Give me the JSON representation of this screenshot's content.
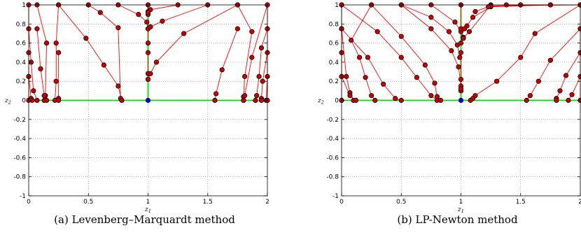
{
  "chart_data": [
    {
      "type": "line",
      "caption": "(a) Levenberg–Marquardt method",
      "xlabel": "z1",
      "ylabel": "z2",
      "xlim": [
        0,
        2
      ],
      "ylim": [
        -1,
        1
      ],
      "x_ticks": [
        "0",
        "0.5",
        "1",
        "1.5",
        "2"
      ],
      "y_ticks": [
        "1",
        "0.8",
        "0.6",
        "0.4",
        "0.2",
        "0",
        "-0.2",
        "-0.4",
        "-0.6",
        "-0.8",
        "-1"
      ],
      "grid": true,
      "colors": {
        "trajectory": "#ff0000",
        "marker": "#cc0000",
        "solution_set": "#00dd00",
        "limit_point": "#0000ff"
      },
      "solution_set": [
        [
          [
            0,
            0
          ],
          [
            2,
            0
          ]
        ],
        [
          [
            1,
            0
          ],
          [
            1,
            1
          ]
        ]
      ],
      "limit_point": [
        1,
        0
      ],
      "trajectories": [
        [
          [
            0,
            1
          ],
          [
            0,
            0.75
          ],
          [
            0.02,
            0.4
          ],
          [
            0.04,
            0.1
          ],
          [
            0.07,
            0
          ]
        ],
        [
          [
            0,
            0.5
          ],
          [
            0,
            0.25
          ],
          [
            0.02,
            0.02
          ],
          [
            0.03,
            0
          ]
        ],
        [
          [
            0,
            0.25
          ],
          [
            0,
            0
          ]
        ],
        [
          [
            0.07,
            1
          ],
          [
            0.15,
            0.6
          ],
          [
            0.14,
            0.05
          ],
          [
            0.13,
            0
          ]
        ],
        [
          [
            0.07,
            0.75
          ],
          [
            0.1,
            0.33
          ],
          [
            0.13,
            0.05
          ],
          [
            0.15,
            0
          ]
        ],
        [
          [
            0.25,
            1
          ],
          [
            0.23,
            0.6
          ],
          [
            0.23,
            0.2
          ],
          [
            0.22,
            0
          ]
        ],
        [
          [
            0.25,
            0.5
          ],
          [
            0.25,
            0.02
          ],
          [
            0.25,
            0
          ]
        ],
        [
          [
            0.25,
            1
          ],
          [
            0.48,
            0.65
          ],
          [
            0.63,
            0.37
          ],
          [
            0.75,
            0.15
          ],
          [
            0.78,
            0
          ]
        ],
        [
          [
            0.5,
            1
          ],
          [
            0.6,
            0.92
          ],
          [
            0.75,
            0.76
          ],
          [
            0.77,
            0.02
          ],
          [
            0.78,
            0
          ]
        ],
        [
          [
            0.75,
            1
          ],
          [
            0.92,
            0.9
          ],
          [
            0.99,
            0.82
          ],
          [
            1,
            0.75
          ]
        ],
        [
          [
            1,
            1
          ],
          [
            1,
            0.93
          ],
          [
            1,
            0.9
          ]
        ],
        [
          [
            1,
            0.75
          ],
          [
            1,
            0.6
          ]
        ],
        [
          [
            1,
            0.5
          ],
          [
            1,
            0.28
          ],
          [
            1,
            0.22
          ]
        ],
        [
          [
            1.25,
            1
          ],
          [
            1.02,
            0.95
          ],
          [
            1,
            0.92
          ]
        ],
        [
          [
            1.5,
            1
          ],
          [
            1.12,
            0.83
          ],
          [
            1.02,
            0.77
          ]
        ],
        [
          [
            1.75,
            1
          ],
          [
            1.3,
            0.7
          ],
          [
            1.07,
            0.4
          ],
          [
            1.02,
            0.28
          ],
          [
            1,
            0.22
          ]
        ],
        [
          [
            1.75,
            0.75
          ],
          [
            1.62,
            0.32
          ],
          [
            1.57,
            0.07
          ],
          [
            1.56,
            0
          ]
        ],
        [
          [
            1.75,
            1
          ],
          [
            1.87,
            0.72
          ],
          [
            1.81,
            0.25
          ],
          [
            1.8,
            0.04
          ],
          [
            1.8,
            0
          ]
        ],
        [
          [
            2,
            1
          ],
          [
            1.87,
            0.45
          ],
          [
            1.81,
            0.05
          ],
          [
            1.8,
            0
          ]
        ],
        [
          [
            2,
            0.75
          ],
          [
            1.95,
            0.55
          ],
          [
            1.93,
            0.25
          ],
          [
            1.91,
            0.05
          ],
          [
            1.9,
            0
          ]
        ],
        [
          [
            2,
            0.5
          ],
          [
            1.96,
            0.2
          ],
          [
            1.95,
            0.02
          ],
          [
            1.95,
            0
          ]
        ],
        [
          [
            2,
            0.25
          ],
          [
            1.99,
            0
          ]
        ],
        [
          [
            2,
            1
          ],
          [
            2,
            0
          ]
        ]
      ]
    },
    {
      "type": "line",
      "caption": "(b) LP-Newton method",
      "xlabel": "z1",
      "ylabel": "z2",
      "xlim": [
        0,
        2
      ],
      "ylim": [
        -1,
        1
      ],
      "x_ticks": [
        "0",
        "0.5",
        "1",
        "1.5",
        "2"
      ],
      "y_ticks": [
        "1",
        "0.8",
        "0.6",
        "0.4",
        "0.2",
        "0",
        "-0.2",
        "-0.4",
        "-0.6",
        "-0.8",
        "-1"
      ],
      "grid": true,
      "colors": {
        "trajectory": "#ff0000",
        "marker": "#cc0000",
        "solution_set": "#00dd00",
        "limit_point": "#0000ff"
      },
      "solution_set": [
        [
          [
            0,
            0
          ],
          [
            2,
            0
          ]
        ],
        [
          [
            1,
            0
          ],
          [
            1,
            1
          ]
        ]
      ],
      "limit_point": [
        1,
        0
      ],
      "trajectories": [
        [
          [
            0,
            1
          ],
          [
            0,
            0.75
          ],
          [
            0,
            0.5
          ],
          [
            0,
            0.25
          ],
          [
            0,
            0
          ]
        ],
        [
          [
            0,
            0.75
          ],
          [
            0.04,
            0.25
          ],
          [
            0.07,
            0.08
          ],
          [
            0.1,
            0
          ]
        ],
        [
          [
            0,
            0.25
          ],
          [
            0.07,
            0.05
          ],
          [
            0.12,
            0
          ]
        ],
        [
          [
            0.25,
            1
          ],
          [
            0.08,
            0.63
          ],
          [
            0.15,
            0.45
          ],
          [
            0.2,
            0.24
          ],
          [
            0.25,
            0.05
          ],
          [
            0.28,
            0
          ]
        ],
        [
          [
            0,
            0.75
          ],
          [
            0.22,
            0.45
          ],
          [
            0.35,
            0.17
          ],
          [
            0.45,
            0.02
          ],
          [
            0.5,
            0
          ]
        ],
        [
          [
            0,
            1
          ],
          [
            0.3,
            0.72
          ],
          [
            0.5,
            0.45
          ],
          [
            0.63,
            0.24
          ],
          [
            0.75,
            0.05
          ],
          [
            0.8,
            0
          ]
        ],
        [
          [
            0.25,
            1
          ],
          [
            0.5,
            0.67
          ],
          [
            0.7,
            0.37
          ],
          [
            0.78,
            0.18
          ],
          [
            0.8,
            0.04
          ],
          [
            0.83,
            0
          ]
        ],
        [
          [
            0.5,
            1
          ],
          [
            0.75,
            0.75
          ],
          [
            0.92,
            0.52
          ],
          [
            0.98,
            0.35
          ],
          [
            1,
            0.15
          ],
          [
            1,
            0.1
          ]
        ],
        [
          [
            0.5,
            1
          ],
          [
            0.75,
            0.87
          ],
          [
            0.9,
            0.72
          ],
          [
            0.97,
            0.58
          ],
          [
            0.99,
            0.45
          ]
        ],
        [
          [
            0.75,
            1
          ],
          [
            0.95,
            0.82
          ],
          [
            1,
            0.72
          ],
          [
            1.02,
            0.65
          ]
        ],
        [
          [
            1,
            1
          ],
          [
            1,
            0.75
          ],
          [
            1.02,
            0.66
          ],
          [
            1,
            0.6
          ]
        ],
        [
          [
            1,
            0.5
          ],
          [
            1,
            0.22
          ],
          [
            1,
            0.12
          ]
        ],
        [
          [
            1.25,
            1
          ],
          [
            1.07,
            0.72
          ],
          [
            1.02,
            0.65
          ]
        ],
        [
          [
            1.75,
            1
          ],
          [
            1.25,
            0.98
          ],
          [
            1.1,
            0.87
          ],
          [
            1.05,
            0.78
          ],
          [
            1.03,
            0.75
          ]
        ],
        [
          [
            2,
            1
          ],
          [
            1.25,
            0.99
          ],
          [
            1.12,
            0.93
          ]
        ],
        [
          [
            1.5,
            1
          ],
          [
            1.23,
            0.98
          ]
        ],
        [
          [
            1.75,
            1
          ],
          [
            1.5,
            1
          ],
          [
            1.38,
            1
          ]
        ],
        [
          [
            2,
            1
          ],
          [
            1.62,
            0.7
          ],
          [
            1.5,
            0.45
          ],
          [
            1.3,
            0.2
          ],
          [
            1.12,
            0.05
          ],
          [
            1.1,
            0.02
          ],
          [
            1.08,
            0
          ]
        ],
        [
          [
            2,
            0.75
          ],
          [
            1.75,
            0.42
          ],
          [
            1.65,
            0.2
          ],
          [
            1.58,
            0.05
          ],
          [
            1.55,
            0
          ]
        ],
        [
          [
            2,
            0.5
          ],
          [
            1.88,
            0.26
          ],
          [
            1.83,
            0.1
          ],
          [
            1.8,
            0.02
          ],
          [
            1.8,
            0
          ]
        ],
        [
          [
            2,
            0.25
          ],
          [
            1.93,
            0.06
          ],
          [
            1.9,
            0
          ]
        ],
        [
          [
            2,
            0.75
          ],
          [
            2,
            0
          ]
        ]
      ]
    }
  ]
}
